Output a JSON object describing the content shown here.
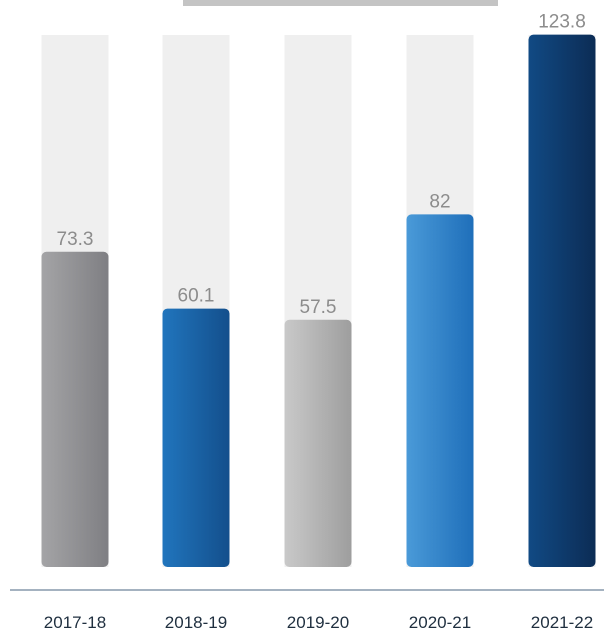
{
  "chart_data": {
    "type": "bar",
    "categories": [
      "2017-18",
      "2018-19",
      "2019-20",
      "2020-21",
      "2021-22"
    ],
    "values": [
      73.3,
      60.1,
      57.5,
      82,
      123.8
    ],
    "value_labels": [
      "73.3",
      "60.1",
      "57.5",
      "82",
      "123.8"
    ],
    "title": "",
    "xlabel": "",
    "ylabel": "",
    "grid": false,
    "legend": "none",
    "bar_colors": [
      [
        "#a4a4a6",
        "#7f7f83"
      ],
      [
        "#2175bd",
        "#134f8c"
      ],
      [
        "#c9c9c9",
        "#9e9e9e"
      ],
      [
        "#4a9ad8",
        "#1f6fba"
      ],
      [
        "#114a84",
        "#0c2c55"
      ]
    ],
    "track_color": "#efefef",
    "header_bar_color": "#c4c4c4",
    "axis_line_color": "#4a6580",
    "value_label_color": "#8c8c8c",
    "tick_label_color": "#1f2f3f"
  }
}
